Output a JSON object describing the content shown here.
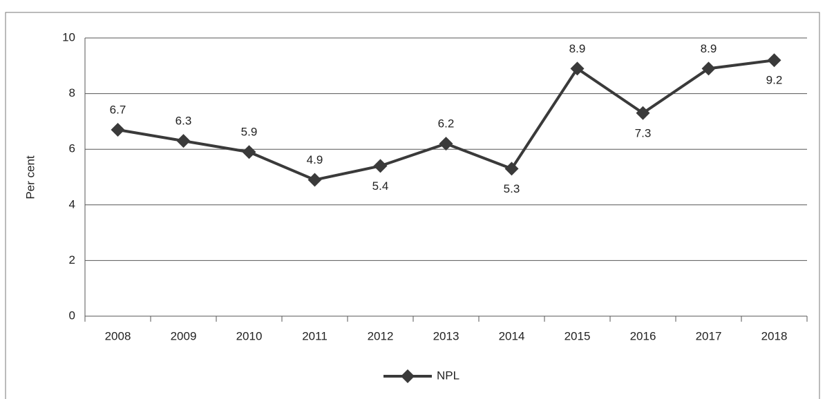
{
  "chart_data": {
    "type": "line",
    "y_label": "Per cent",
    "categories": [
      "2008",
      "2009",
      "2010",
      "2011",
      "2012",
      "2013",
      "2014",
      "2015",
      "2016",
      "2017",
      "2018"
    ],
    "series": [
      {
        "name": "NPL",
        "color": "#3a3a3a",
        "values": [
          6.7,
          6.3,
          5.9,
          4.9,
          5.4,
          6.2,
          5.3,
          8.9,
          7.3,
          8.9,
          9.2
        ]
      }
    ],
    "ylim": [
      0,
      10
    ],
    "yticks": [
      0,
      2,
      4,
      6,
      8,
      10
    ],
    "grid": true,
    "legend": "bottom"
  }
}
